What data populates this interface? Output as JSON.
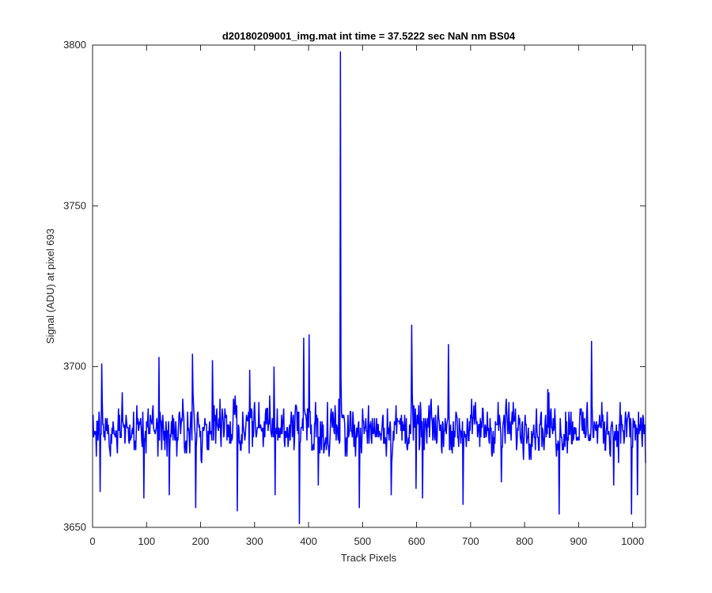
{
  "chart_data": {
    "type": "line",
    "title": "d20180209001_img.mat int time = 37.5222 sec  NaN nm BS04",
    "xlabel": "Track Pixels",
    "ylabel": "Signal (ADU) at pixel 693",
    "xlim": [
      0,
      1024
    ],
    "ylim": [
      3650,
      3800
    ],
    "xticks": [
      0,
      100,
      200,
      300,
      400,
      500,
      600,
      700,
      800,
      900,
      1000
    ],
    "yticks": [
      3650,
      3700,
      3750,
      3800
    ],
    "grid": false,
    "legend": "none",
    "series": [
      {
        "color": "#0000ff",
        "baseline": 3681,
        "noise_amplitude": 9,
        "x_start": 1,
        "x_end": 1024,
        "points": [
          {
            "x": 1,
            "y": 3685
          },
          {
            "x": 7,
            "y": 3672
          },
          {
            "x": 14,
            "y": 3661
          },
          {
            "x": 17,
            "y": 3701
          },
          {
            "x": 55,
            "y": 3692
          },
          {
            "x": 95,
            "y": 3659
          },
          {
            "x": 123,
            "y": 3703
          },
          {
            "x": 142,
            "y": 3660
          },
          {
            "x": 185,
            "y": 3704
          },
          {
            "x": 191,
            "y": 3656
          },
          {
            "x": 222,
            "y": 3702
          },
          {
            "x": 264,
            "y": 3691
          },
          {
            "x": 268,
            "y": 3655
          },
          {
            "x": 291,
            "y": 3699
          },
          {
            "x": 336,
            "y": 3700
          },
          {
            "x": 338,
            "y": 3660
          },
          {
            "x": 383,
            "y": 3651
          },
          {
            "x": 391,
            "y": 3709
          },
          {
            "x": 401,
            "y": 3710
          },
          {
            "x": 418,
            "y": 3663
          },
          {
            "x": 456,
            "y": 3690
          },
          {
            "x": 459,
            "y": 3798
          },
          {
            "x": 462,
            "y": 3684
          },
          {
            "x": 494,
            "y": 3656
          },
          {
            "x": 553,
            "y": 3660
          },
          {
            "x": 591,
            "y": 3713
          },
          {
            "x": 599,
            "y": 3662
          },
          {
            "x": 611,
            "y": 3659
          },
          {
            "x": 659,
            "y": 3707
          },
          {
            "x": 686,
            "y": 3657
          },
          {
            "x": 757,
            "y": 3664
          },
          {
            "x": 843,
            "y": 3693
          },
          {
            "x": 864,
            "y": 3654
          },
          {
            "x": 924,
            "y": 3708
          },
          {
            "x": 965,
            "y": 3663
          },
          {
            "x": 998,
            "y": 3654
          },
          {
            "x": 1009,
            "y": 3660
          },
          {
            "x": 1024,
            "y": 3670
          }
        ]
      }
    ]
  }
}
